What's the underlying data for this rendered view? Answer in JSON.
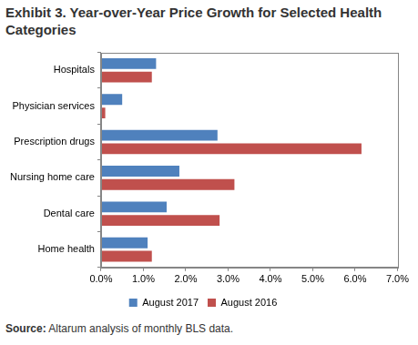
{
  "chart_data": {
    "type": "bar",
    "orientation": "horizontal",
    "title": "Exhibit 3. Year-over-Year Price Growth for Selected Health Categories",
    "annotations": [
      "Source: Altarum analysis of monthly BLS data."
    ],
    "categories": [
      "Hospitals",
      "Physician services",
      "Prescription drugs",
      "Nursing home care",
      "Dental care",
      "Home health"
    ],
    "series": [
      {
        "name": "August 2017",
        "color": "#4f81bd",
        "values": [
          1.3,
          0.5,
          2.75,
          1.85,
          1.55,
          1.1
        ]
      },
      {
        "name": "August 2016",
        "color": "#c0504d",
        "values": [
          1.2,
          0.1,
          6.15,
          3.15,
          2.8,
          1.2
        ]
      }
    ],
    "xlim": [
      0,
      7
    ],
    "xticks": [
      {
        "value": 0,
        "label": "0.0%"
      },
      {
        "value": 1,
        "label": "1.0%"
      },
      {
        "value": 2,
        "label": "2.0%"
      },
      {
        "value": 3,
        "label": "3.0%"
      },
      {
        "value": 4,
        "label": "4.0%"
      },
      {
        "value": 5,
        "label": "5.0%"
      },
      {
        "value": 6,
        "label": "6.0%"
      },
      {
        "value": 7,
        "label": "7.0%"
      }
    ],
    "grid": false,
    "legend": "bottom"
  }
}
